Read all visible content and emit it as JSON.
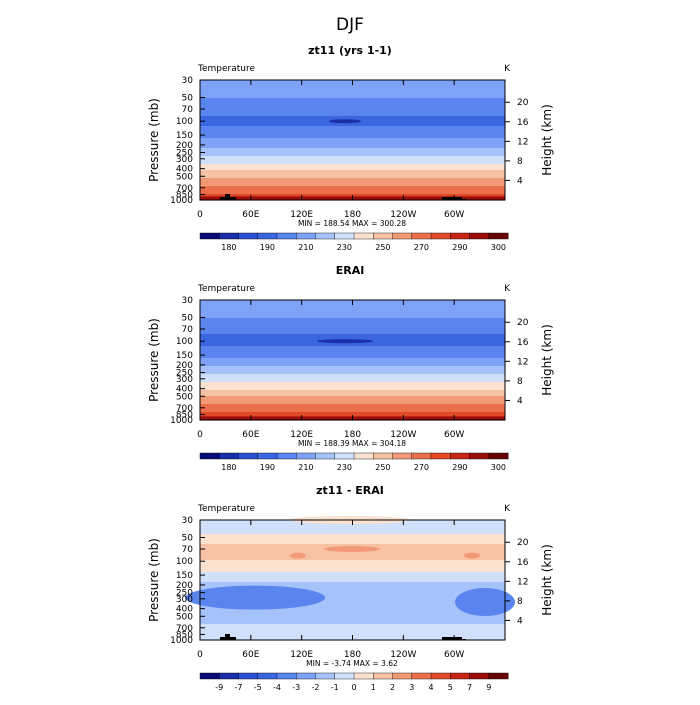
{
  "super_title": "DJF",
  "panels": [
    {
      "title": "zt11 (yrs 1-1)",
      "left_label": "Temperature",
      "right_label": "K",
      "min_max": "MIN = 188.54   MAX = 300.28",
      "colorbar_labels": [
        "180",
        "190",
        "210",
        "230",
        "250",
        "270",
        "290",
        "300"
      ],
      "colors": [
        "#0a0a78",
        "#1a2ea8",
        "#2a4fd0",
        "#3a66e0",
        "#5a85ee",
        "#7ea3f6",
        "#a6c2fa",
        "#d0e0fb",
        "#fbe2d0",
        "#f7c1a4",
        "#f29a75",
        "#ec6f4b",
        "#e14a29",
        "#c62515",
        "#9a0d0b",
        "#650505"
      ],
      "levels": [
        170,
        180,
        185,
        190,
        200,
        210,
        220,
        230,
        240,
        250,
        260,
        270,
        280,
        290,
        295,
        300
      ]
    },
    {
      "title": "ERAI",
      "left_label": "Temperature",
      "right_label": "K",
      "min_max": "MIN = 188.39   MAX = 304.18",
      "colorbar_labels": [
        "180",
        "190",
        "210",
        "230",
        "250",
        "270",
        "290",
        "300"
      ],
      "colors": [
        "#0a0a78",
        "#1a2ea8",
        "#2a4fd0",
        "#3a66e0",
        "#5a85ee",
        "#7ea3f6",
        "#a6c2fa",
        "#d0e0fb",
        "#fbe2d0",
        "#f7c1a4",
        "#f29a75",
        "#ec6f4b",
        "#e14a29",
        "#c62515",
        "#9a0d0b",
        "#650505"
      ],
      "levels": [
        170,
        180,
        185,
        190,
        200,
        210,
        220,
        230,
        240,
        250,
        260,
        270,
        280,
        290,
        295,
        300
      ]
    },
    {
      "title": "zt11 - ERAI",
      "left_label": "Temperature",
      "right_label": "K",
      "min_max": "MIN =    -3.74   MAX =     3.62",
      "colorbar_labels": [
        "-9",
        "-7",
        "-5",
        "-4",
        "-3",
        "-2",
        "-1",
        "0",
        "1",
        "2",
        "3",
        "4",
        "5",
        "7",
        "9"
      ],
      "colors": [
        "#0a0a78",
        "#1a2ea8",
        "#2a4fd0",
        "#3a66e0",
        "#5a85ee",
        "#7ea3f6",
        "#a6c2fa",
        "#d0e0fb",
        "#fbe2d0",
        "#f7c1a4",
        "#f29a75",
        "#ec6f4b",
        "#e14a29",
        "#c62515",
        "#9a0d0b",
        "#650505"
      ],
      "levels": [
        -10,
        -9,
        -7,
        -5,
        -4,
        -3,
        -2,
        -1,
        0,
        1,
        2,
        3,
        4,
        5,
        7,
        9
      ]
    }
  ],
  "x_ticks": [
    "0",
    "60E",
    "120E",
    "180",
    "120W",
    "60W"
  ],
  "y_ticks": [
    "30",
    "50",
    "70",
    "100",
    "150",
    "200",
    "250",
    "300",
    "400",
    "500",
    "700",
    "850",
    "1000"
  ],
  "y_label": "Pressure (mb)",
  "right_axis_label": "Height (km)",
  "height_ticks": [
    "20",
    "16",
    "12",
    "8",
    "4"
  ],
  "chart_data": [
    {
      "type": "heatmap",
      "title": "zt11 (yrs 1-1)",
      "variable": "Temperature",
      "units": "K",
      "x": [
        "0",
        "60E",
        "120E",
        "180",
        "120W",
        "60W"
      ],
      "y": [
        30,
        50,
        70,
        100,
        150,
        200,
        250,
        300,
        400,
        500,
        700,
        850,
        1000
      ],
      "ylabel": "Pressure (mb)",
      "right_axis": "Height (km)",
      "min": 188.54,
      "max": 300.28,
      "zonal_mean_temperature_by_level": [
        215,
        210,
        204,
        197,
        206,
        217,
        226,
        234,
        248,
        259,
        273,
        281,
        290
      ]
    },
    {
      "type": "heatmap",
      "title": "ERAI",
      "variable": "Temperature",
      "units": "K",
      "x": [
        "0",
        "60E",
        "120E",
        "180",
        "120W",
        "60W"
      ],
      "y": [
        30,
        50,
        70,
        100,
        150,
        200,
        250,
        300,
        400,
        500,
        700,
        850,
        1000
      ],
      "ylabel": "Pressure (mb)",
      "right_axis": "Height (km)",
      "min": 188.39,
      "max": 304.18,
      "zonal_mean_temperature_by_level": [
        216,
        210,
        203,
        196,
        206,
        218,
        227,
        236,
        249,
        260,
        274,
        282,
        292
      ]
    },
    {
      "type": "heatmap",
      "title": "zt11 - ERAI",
      "variable": "Temperature",
      "units": "K",
      "x": [
        "0",
        "60E",
        "120E",
        "180",
        "120W",
        "60W"
      ],
      "y": [
        30,
        50,
        70,
        100,
        150,
        200,
        250,
        300,
        400,
        500,
        700,
        850,
        1000
      ],
      "ylabel": "Pressure (mb)",
      "right_axis": "Height (km)",
      "min": -3.74,
      "max": 3.62,
      "zonal_mean_difference_by_level": [
        -0.6,
        0.2,
        1.8,
        0.9,
        -0.2,
        -1.4,
        -1.5,
        -1.6,
        -1.4,
        -1.3,
        -0.9,
        -0.5,
        -1.1
      ]
    }
  ]
}
